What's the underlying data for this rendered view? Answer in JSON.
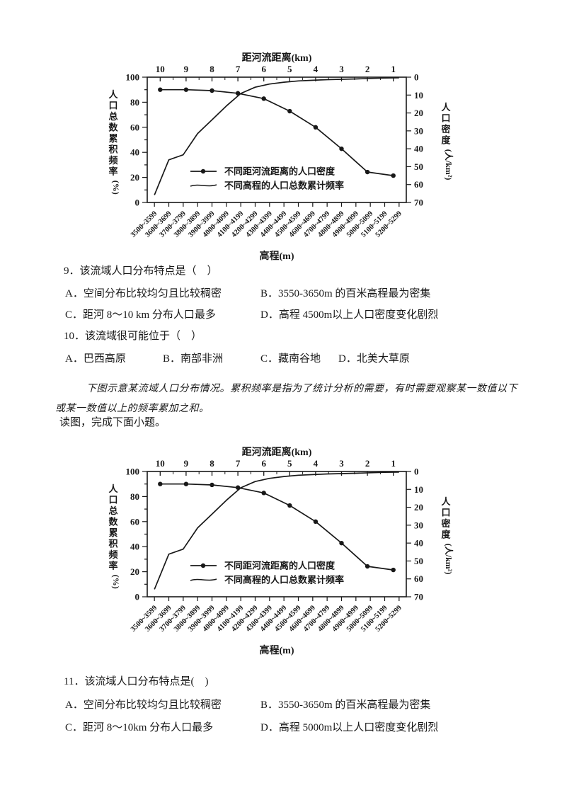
{
  "text": {
    "intro_paragraph": "下图示意某流域人口分布情况。累积频率是指为了统计分析的需要，有时需要观察某一数值以下或某一数值以上的频率累加之和。",
    "read_instruction": "读图，完成下面小题。"
  },
  "questions": [
    {
      "id": "9",
      "stem": "9．该流域人口分布特点是（　）",
      "options": [
        "A．空间分布比较均匀且比较稠密",
        "B．3550-3650m 的百米高程最为密集",
        "C．距河 8～10 km 分布人口最多",
        "D．高程 4500m以上人口密度变化剧烈"
      ]
    },
    {
      "id": "10",
      "stem": "10．该流域很可能位于（　）",
      "options": [
        "A．巴西高原",
        "B．南部非洲",
        "C．藏南谷地",
        "D．北美大草原"
      ]
    },
    {
      "id": "11",
      "stem": "11．该流域人口分布特点是(　)",
      "options": [
        "A．空间分布比较均匀且比较稠密",
        "B．3550-3650m 的百米高程最为密集",
        "C．距河 8～10km 分布人口最多",
        "D．高程 5000m以上人口密度变化剧烈"
      ]
    }
  ],
  "chart_data": [
    {
      "type": "line",
      "top_axis": {
        "title": "距河流距离(km)",
        "ticks": [
          "10",
          "9",
          "8",
          "7",
          "6",
          "5",
          "4",
          "3",
          "2",
          "1"
        ]
      },
      "left_axis": {
        "title": "人口总数累积频率（%）",
        "min": 0,
        "max": 100,
        "major_step": 20,
        "minor_step": 10
      },
      "right_axis": {
        "title": "人口密度(人/km²)",
        "min": 0,
        "max": 70,
        "major_step": 10,
        "orientation": "0 at top, 70 at bottom"
      },
      "bottom_axis": {
        "title": "高程(m)",
        "categories": [
          "3500~3599",
          "3600~3699",
          "3700~3799",
          "3800~3899",
          "3900~3999",
          "4000~4099",
          "4100~4199",
          "4200~4299",
          "4300~4399",
          "4400~4499",
          "4500~4599",
          "4600~4699",
          "4700~4799",
          "4800~4899",
          "4900~4999",
          "5000~5099",
          "5100~5199",
          "5200~5299"
        ]
      },
      "series": [
        {
          "name": "不同距河流距离的人口密度",
          "x_axis": "top",
          "y_axis": "right",
          "marker": "filled-circle",
          "x": [
            10,
            9,
            8,
            7,
            6,
            5,
            4,
            3,
            2,
            1
          ],
          "values": [
            7,
            7,
            7.5,
            9,
            12,
            19,
            28,
            40,
            53,
            55
          ]
        },
        {
          "name": "不同高程的人口总数累计频率",
          "x_axis": "bottom",
          "y_axis": "left",
          "marker": "none",
          "values": [
            6,
            34,
            38,
            55,
            66,
            77,
            87,
            92,
            94.5,
            96,
            97,
            97.5,
            98,
            98.3,
            98.6,
            99,
            99.3,
            99.5
          ]
        }
      ],
      "legend": {
        "position": "inside-lower-left",
        "entries": [
          "不同距河流距离的人口密度",
          "不同高程的人口总数累计频率"
        ]
      },
      "grid": false
    },
    {
      "type": "line",
      "top_axis": {
        "title": "距河流距离(km)",
        "ticks": [
          "10",
          "9",
          "8",
          "7",
          "6",
          "5",
          "4",
          "3",
          "2",
          "1"
        ]
      },
      "left_axis": {
        "title": "人口总数累积频率（%）",
        "min": 0,
        "max": 100,
        "major_step": 20,
        "minor_step": 10
      },
      "right_axis": {
        "title": "人口密度(人/km²)",
        "min": 0,
        "max": 70,
        "major_step": 10,
        "orientation": "0 at top, 70 at bottom"
      },
      "bottom_axis": {
        "title": "高程(m)",
        "categories": [
          "3500~3599",
          "3600~3699",
          "3700~3799",
          "3800~3899",
          "3900~3999",
          "4000~4099",
          "4100~4199",
          "4200~4299",
          "4300~4399",
          "4400~4499",
          "4500~4599",
          "4600~4699",
          "4700~4799",
          "4800~4899",
          "4900~4999",
          "5000~5099",
          "5100~5199",
          "5200~5299"
        ]
      },
      "series": [
        {
          "name": "不同距河流距离的人口密度",
          "x_axis": "top",
          "y_axis": "right",
          "marker": "filled-circle",
          "x": [
            10,
            9,
            8,
            7,
            6,
            5,
            4,
            3,
            2,
            1
          ],
          "values": [
            7,
            7,
            7.5,
            9,
            12,
            19,
            28,
            40,
            53,
            55
          ]
        },
        {
          "name": "不同高程的人口总数累计频率",
          "x_axis": "bottom",
          "y_axis": "left",
          "marker": "none",
          "values": [
            6,
            34,
            38,
            55,
            66,
            77,
            87,
            92,
            94.5,
            96,
            97,
            97.5,
            98,
            98.3,
            98.6,
            99,
            99.3,
            99.5
          ]
        }
      ],
      "legend": {
        "position": "inside-lower-left",
        "entries": [
          "不同距河流距离的人口密度",
          "不同高程的人口总数累计频率"
        ]
      },
      "grid": false
    }
  ]
}
